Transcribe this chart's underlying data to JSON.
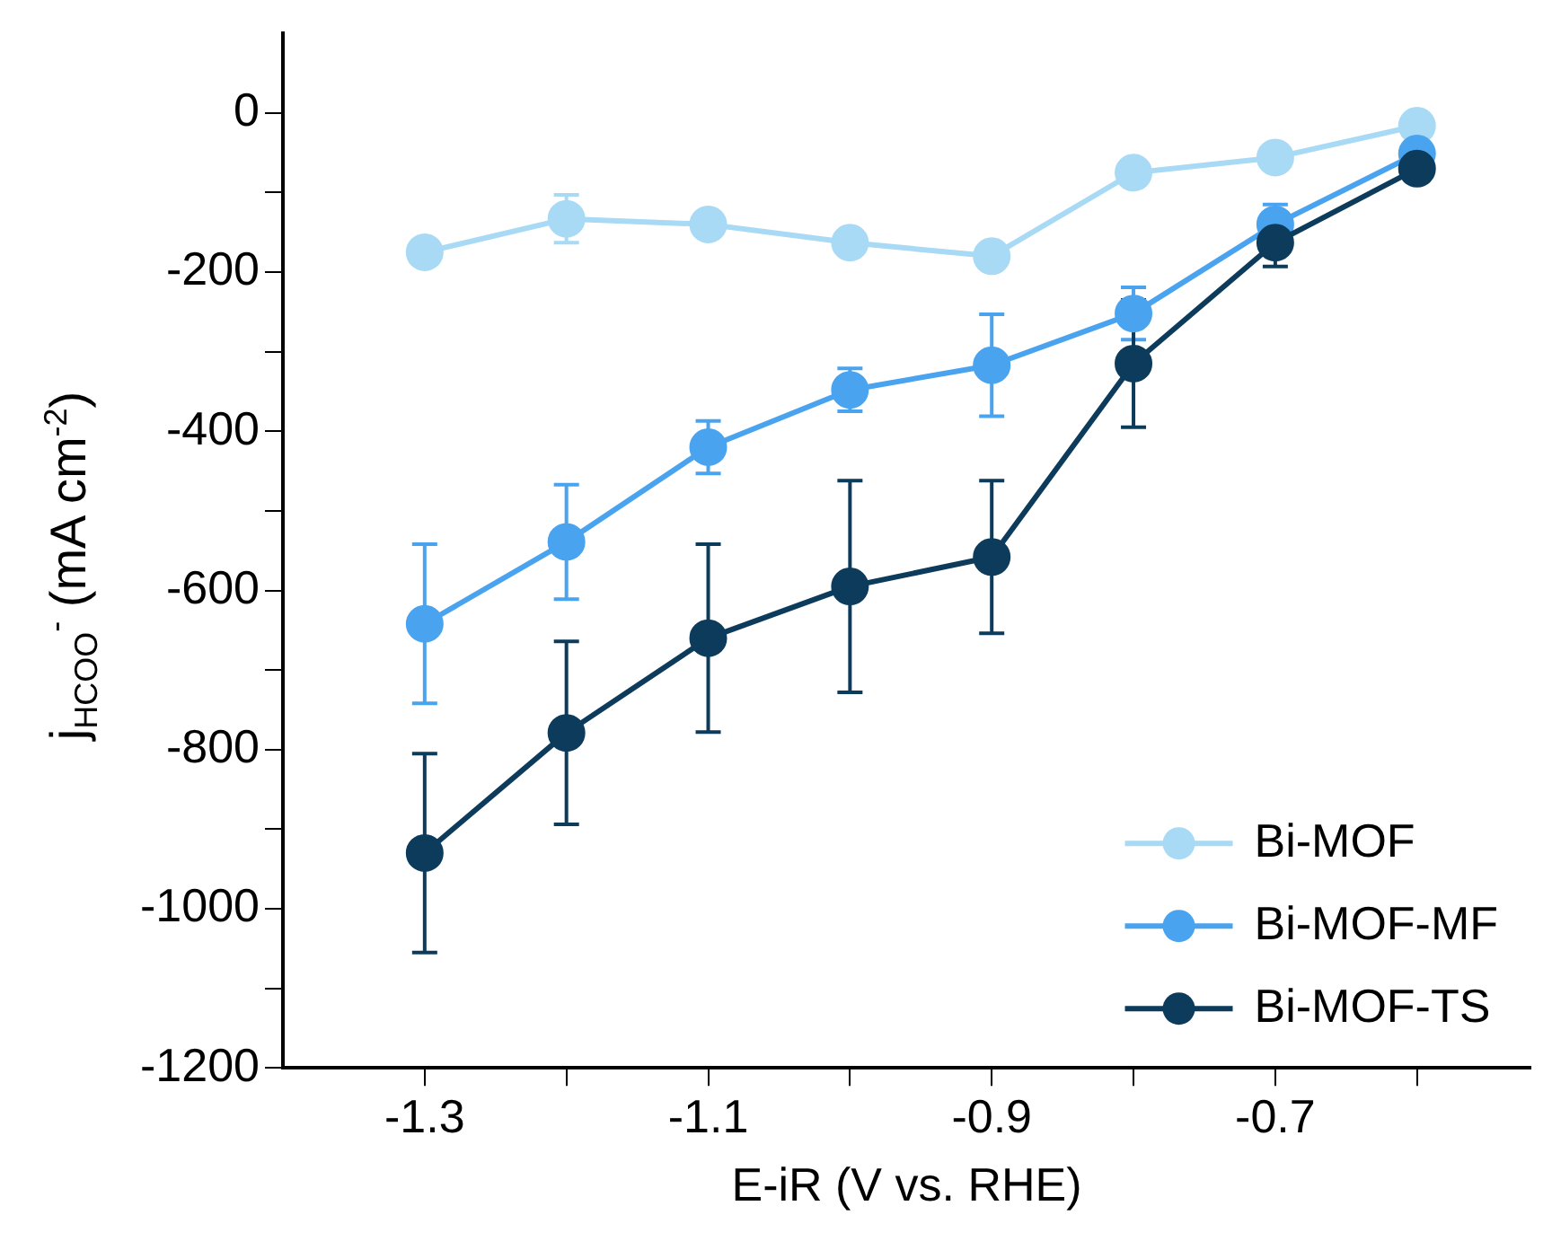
{
  "chart_data": {
    "type": "line",
    "xlabel": "E-iR (V vs. RHE)",
    "ylabel": "j$_{HCOO}$$^{-}$ (mA cm$^{-2}$)",
    "x": [
      -1.3,
      -1.2,
      -1.1,
      -1.0,
      -0.9,
      -0.8,
      -0.7,
      -0.6
    ],
    "series": [
      {
        "name": "Bi-MOF",
        "color": "#a8daf5",
        "values": [
          -175,
          -133,
          -140,
          -163,
          -180,
          -75,
          -56,
          -16
        ],
        "errors": [
          null,
          30,
          null,
          null,
          null,
          null,
          null,
          null
        ]
      },
      {
        "name": "Bi-MOF-MF",
        "color": "#4aa3ef",
        "values": [
          -642,
          -539,
          -420,
          -348,
          -317,
          -252,
          -140,
          -51
        ],
        "errors": [
          100,
          72,
          33,
          27,
          64,
          33,
          25,
          null
        ]
      },
      {
        "name": "Bi-MOF-TS",
        "color": "#0d3b5c",
        "values": [
          -930,
          -779,
          -660,
          -595,
          -558,
          -315,
          -163,
          -70
        ],
        "errors": [
          125,
          115,
          118,
          133,
          96,
          80,
          30,
          null
        ]
      }
    ],
    "xlim": [
      -1.4,
      -0.52
    ],
    "ylim": [
      -1200,
      100
    ],
    "xticks": [
      -1.3,
      {
        "value": -1.2,
        "label": null
      },
      -1.1,
      {
        "value": -1.0,
        "label": null
      },
      -0.9,
      {
        "value": -0.8,
        "label": null
      },
      -0.7,
      {
        "value": -0.6,
        "label": null
      }
    ],
    "yticks": [
      -1200,
      {
        "value": -1100,
        "label": null
      },
      -1000,
      {
        "value": -900,
        "label": null
      },
      -800,
      {
        "value": -700,
        "label": null
      },
      -600,
      {
        "value": -500,
        "label": null
      },
      -400,
      {
        "value": -300,
        "label": null
      },
      -200,
      {
        "value": -100,
        "label": null
      },
      0
    ],
    "grid": false,
    "legend": "bottom right",
    "marker": "circle",
    "line_style": "solid"
  }
}
